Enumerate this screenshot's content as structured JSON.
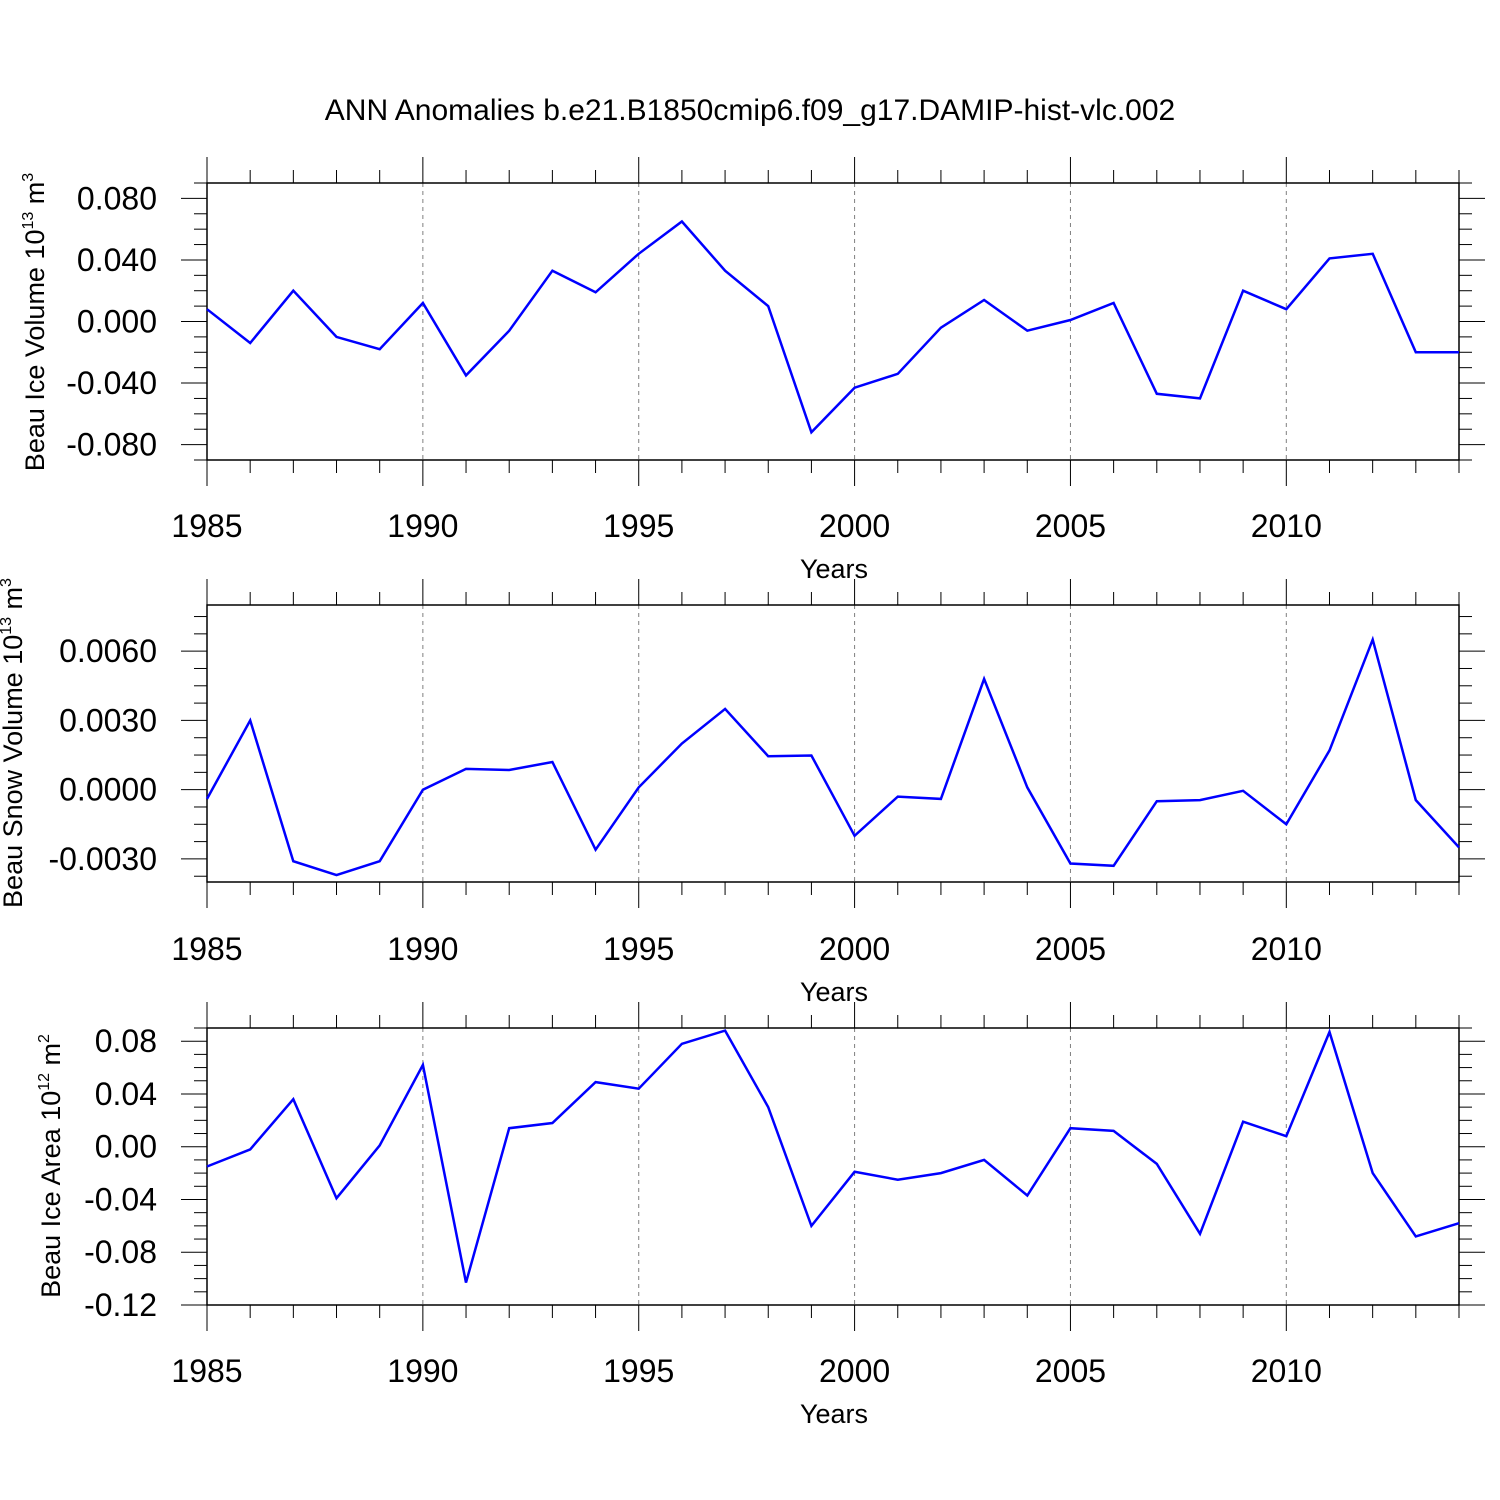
{
  "title": "ANN Anomalies b.e21.B1850cmip6.f09_g17.DAMIP-hist-vlc.002",
  "colors": {
    "line": "#0000ff",
    "axis": "#000000",
    "grid": "#808080"
  },
  "chart_data": [
    {
      "type": "line",
      "ylabel_main": "Beau Ice Volume 10",
      "ylabel_exp": "13",
      "ylabel_unit": " m",
      "ylabel_unit_exp": "3",
      "xlabel": "Years",
      "xlim": [
        1985,
        2014
      ],
      "ylim": [
        -0.09,
        0.09
      ],
      "xticks": [
        "1985",
        "1990",
        "1995",
        "2000",
        "2005",
        "2010"
      ],
      "yticks": [
        "0.080",
        "0.040",
        "0.000",
        "-0.040",
        "-0.080"
      ],
      "x": [
        1985,
        1986,
        1987,
        1988,
        1989,
        1990,
        1991,
        1992,
        1993,
        1994,
        1995,
        1996,
        1997,
        1998,
        1999,
        2000,
        2001,
        2002,
        2003,
        2004,
        2005,
        2006,
        2007,
        2008,
        2009,
        2010,
        2011,
        2012,
        2013,
        2014
      ],
      "values": [
        0.008,
        -0.014,
        0.02,
        -0.01,
        -0.018,
        0.012,
        -0.035,
        -0.006,
        0.033,
        0.019,
        0.044,
        0.065,
        0.033,
        0.01,
        -0.072,
        -0.043,
        -0.034,
        -0.004,
        0.014,
        -0.006,
        0.001,
        0.012,
        -0.047,
        -0.05,
        0.02,
        0.008,
        0.041,
        0.044,
        -0.02,
        -0.02
      ]
    },
    {
      "type": "line",
      "ylabel_main": "Beau Snow Volume 10",
      "ylabel_exp": "13",
      "ylabel_unit": " m",
      "ylabel_unit_exp": "3",
      "xlabel": "Years",
      "xlim": [
        1985,
        2014
      ],
      "ylim": [
        -0.004,
        0.008
      ],
      "xticks": [
        "1985",
        "1990",
        "1995",
        "2000",
        "2005",
        "2010"
      ],
      "yticks": [
        "0.0060",
        "0.0030",
        "0.0000",
        "-0.0030"
      ],
      "x": [
        1985,
        1986,
        1987,
        1988,
        1989,
        1990,
        1991,
        1992,
        1993,
        1994,
        1995,
        1996,
        1997,
        1998,
        1999,
        2000,
        2001,
        2002,
        2003,
        2004,
        2005,
        2006,
        2007,
        2008,
        2009,
        2010,
        2011,
        2012,
        2013,
        2014
      ],
      "values": [
        -0.0004,
        0.003,
        -0.0031,
        -0.0037,
        -0.0031,
        0.0,
        0.0009,
        0.00085,
        0.0012,
        -0.0026,
        0.0001,
        0.002,
        0.0035,
        0.00145,
        0.00148,
        -0.002,
        -0.0003,
        -0.0004,
        0.0048,
        0.0001,
        -0.0032,
        -0.0033,
        -0.0005,
        -0.00045,
        -5e-05,
        -0.0015,
        0.0017,
        0.0065,
        -0.00045,
        -0.0025
      ]
    },
    {
      "type": "line",
      "ylabel_main": "Beau Ice Area 10",
      "ylabel_exp": "12",
      "ylabel_unit": " m",
      "ylabel_unit_exp": "2",
      "xlabel": "Years",
      "xlim": [
        1985,
        2014
      ],
      "ylim": [
        -0.12,
        0.09
      ],
      "xticks": [
        "1985",
        "1990",
        "1995",
        "2000",
        "2005",
        "2010"
      ],
      "yticks": [
        "0.08",
        "0.04",
        "0.00",
        "-0.04",
        "-0.08",
        "-0.12"
      ],
      "x": [
        1985,
        1986,
        1987,
        1988,
        1989,
        1990,
        1991,
        1992,
        1993,
        1994,
        1995,
        1996,
        1997,
        1998,
        1999,
        2000,
        2001,
        2002,
        2003,
        2004,
        2005,
        2006,
        2007,
        2008,
        2009,
        2010,
        2011,
        2012,
        2013,
        2014
      ],
      "values": [
        -0.015,
        -0.002,
        0.036,
        -0.039,
        0.001,
        0.062,
        -0.103,
        0.014,
        0.018,
        0.049,
        0.044,
        0.078,
        0.088,
        0.03,
        -0.06,
        -0.019,
        -0.025,
        -0.02,
        -0.01,
        -0.037,
        0.014,
        0.012,
        -0.013,
        -0.066,
        0.019,
        0.008,
        0.087,
        -0.02,
        -0.068,
        -0.058
      ]
    }
  ]
}
